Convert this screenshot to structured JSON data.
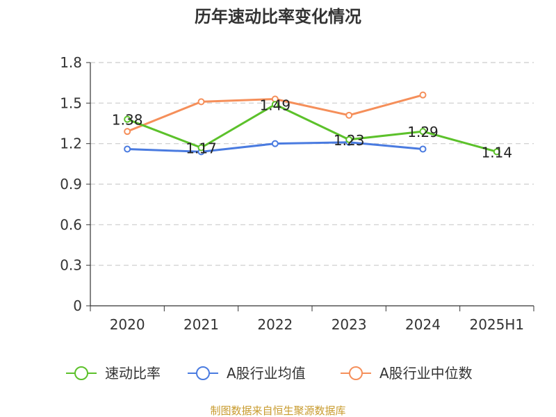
{
  "chart_data": {
    "type": "line",
    "title": "历年速动比率变化情况",
    "categories": [
      "2020",
      "2021",
      "2022",
      "2023",
      "2024",
      "2025H1"
    ],
    "ylim": [
      0,
      1.8
    ],
    "yticks": [
      "0",
      "0.3",
      "0.6",
      "0.9",
      "1.2",
      "1.5",
      "1.8"
    ],
    "grid": true,
    "legend_position": "bottom",
    "series": [
      {
        "name": "速动比率",
        "color": "#5cc12b",
        "values": [
          1.38,
          1.17,
          1.49,
          1.23,
          1.29,
          1.14
        ],
        "labels": [
          "1.38",
          "1.17",
          "1.49",
          "1.23",
          "1.29",
          "1.14"
        ]
      },
      {
        "name": "A股行业均值",
        "color": "#4a7be0",
        "values": [
          1.16,
          1.14,
          1.2,
          1.21,
          1.16,
          null
        ]
      },
      {
        "name": "A股行业中位数",
        "color": "#f58f5a",
        "values": [
          1.29,
          1.51,
          1.53,
          1.41,
          1.56,
          null
        ]
      }
    ]
  },
  "footer": {
    "source": "制图数据来自恒生聚源数据库",
    "source_color": "#c89b2e"
  }
}
